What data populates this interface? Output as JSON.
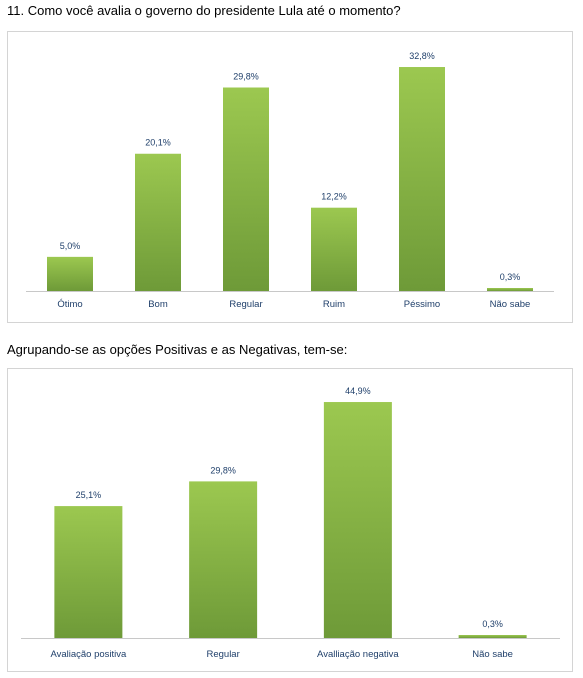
{
  "headings": {
    "q11": "11. Como você avalia o governo do presidente Lula até o momento?",
    "grouped": "Agrupando-se as opções Positivas e as Negativas, tem-se:"
  },
  "colors": {
    "bar_top": "#9cc850",
    "bar_bottom": "#6e9a38",
    "axis": "#c8c8c8",
    "label": "#1f3f6a"
  },
  "chart_data": [
    {
      "type": "bar",
      "title": "",
      "xlabel": "",
      "ylabel": "",
      "categories": [
        "Ótimo",
        "Bom",
        "Regular",
        "Ruim",
        "Péssimo",
        "Não sabe"
      ],
      "values": [
        5.0,
        20.1,
        29.8,
        12.2,
        32.8,
        0.3
      ],
      "value_labels": [
        "5,0%",
        "20,1%",
        "29,8%",
        "12,2%",
        "32,8%",
        "0,3%"
      ],
      "ylim": [
        0,
        35
      ],
      "grid": false
    },
    {
      "type": "bar",
      "title": "",
      "xlabel": "",
      "ylabel": "",
      "categories": [
        "Avaliação positiva",
        "Regular",
        "Avalliação negativa",
        "Não sabe"
      ],
      "values": [
        25.1,
        29.8,
        44.9,
        0.3
      ],
      "value_labels": [
        "25,1%",
        "29,8%",
        "44,9%",
        "0,3%"
      ],
      "ylim": [
        0,
        47
      ],
      "grid": false
    }
  ]
}
